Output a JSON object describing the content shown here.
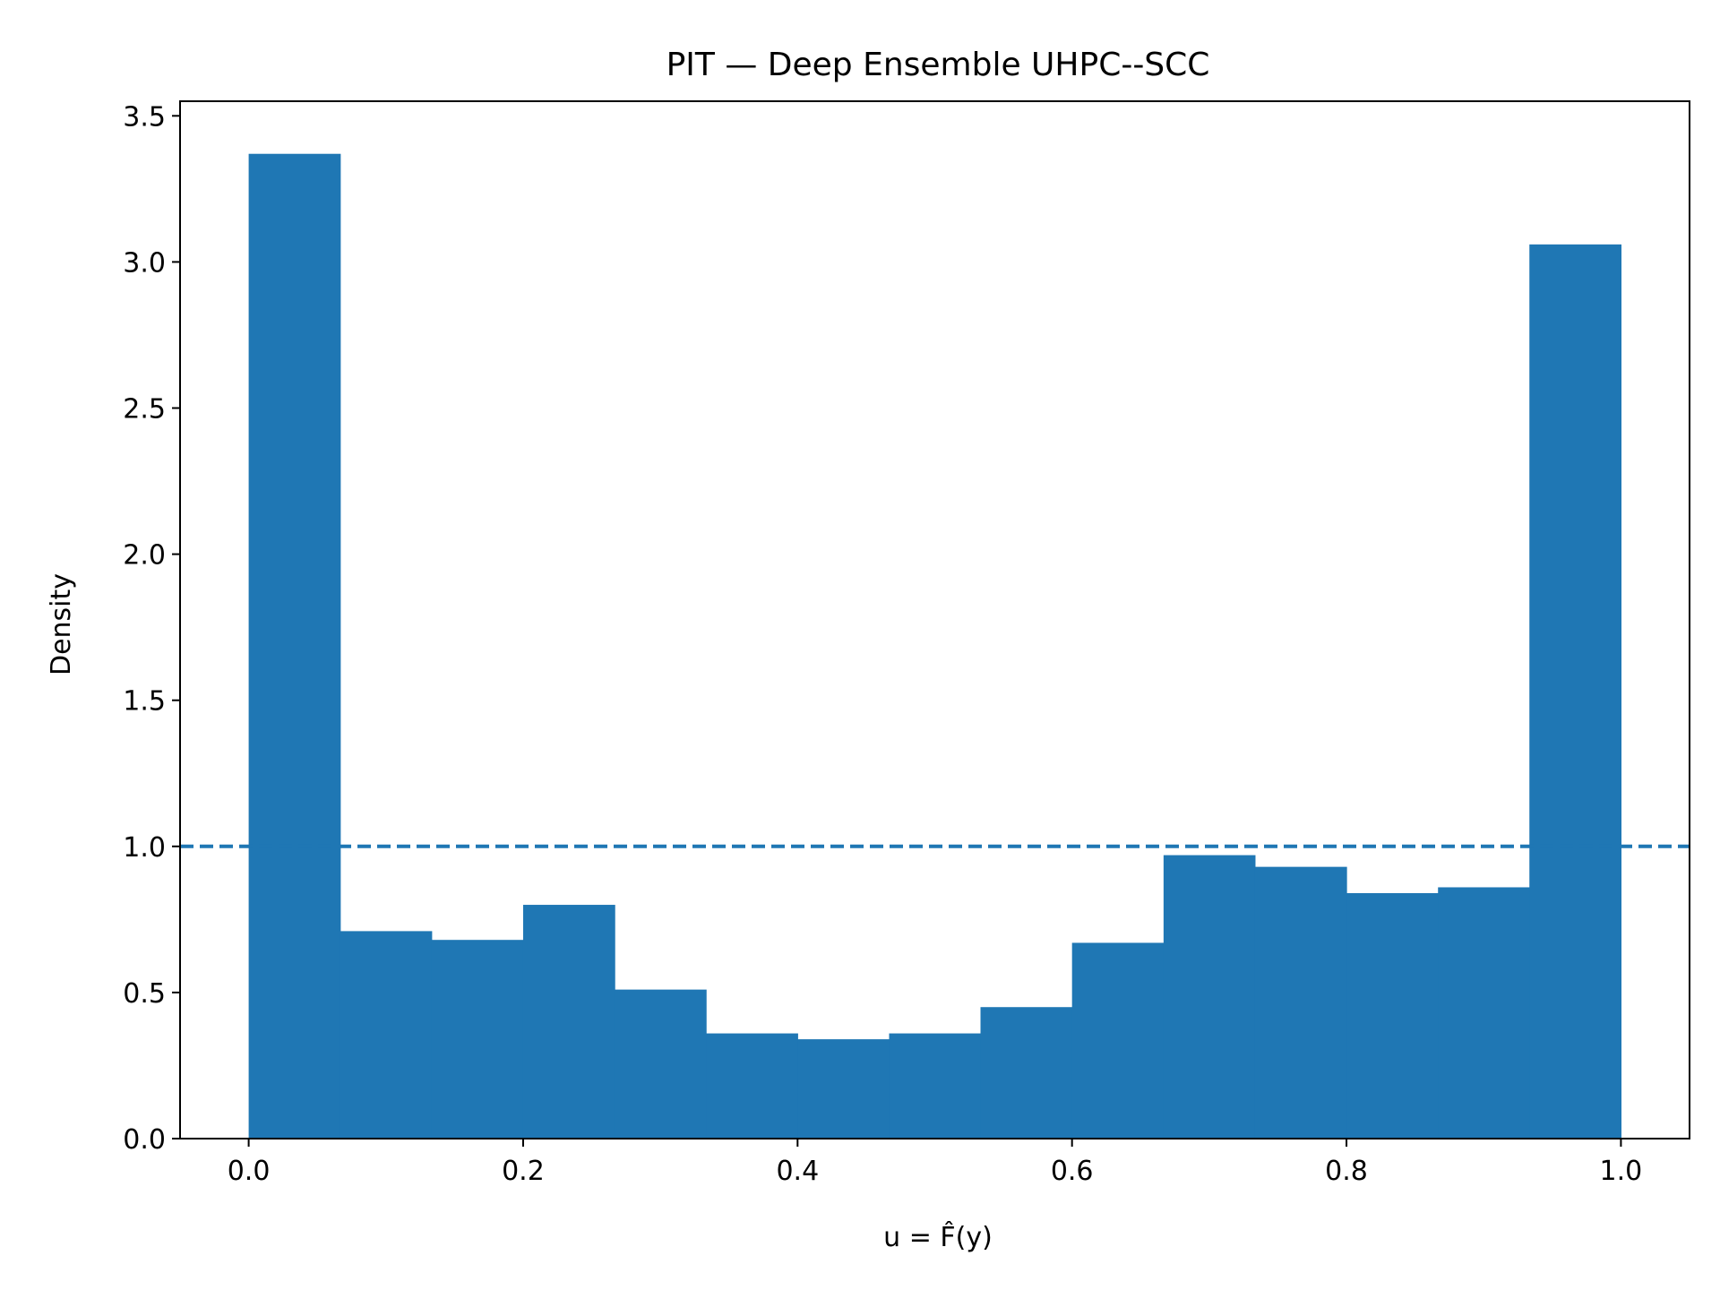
{
  "chart_data": {
    "type": "bar",
    "title": "PIT — Deep Ensemble UHPC--SCC",
    "xlabel": "u = F̂(y)",
    "ylabel": "Density",
    "xlim": [
      -0.05,
      1.05
    ],
    "ylim": [
      0,
      3.55
    ],
    "bin_edges": [
      0.0,
      0.0667,
      0.1333,
      0.2,
      0.2667,
      0.3333,
      0.4,
      0.4667,
      0.5333,
      0.6,
      0.6667,
      0.7333,
      0.8,
      0.8667,
      0.9333,
      1.0
    ],
    "values": [
      3.37,
      0.71,
      0.68,
      0.8,
      0.51,
      0.36,
      0.34,
      0.36,
      0.45,
      0.67,
      0.97,
      0.93,
      0.84,
      0.86,
      3.06
    ],
    "reference_line": {
      "y": 1.0,
      "style": "dashed"
    },
    "x_ticks": [
      {
        "value": 0.0,
        "label": "0.0"
      },
      {
        "value": 0.2,
        "label": "0.2"
      },
      {
        "value": 0.4,
        "label": "0.4"
      },
      {
        "value": 0.6,
        "label": "0.6"
      },
      {
        "value": 0.8,
        "label": "0.8"
      },
      {
        "value": 1.0,
        "label": "1.0"
      }
    ],
    "y_ticks": [
      {
        "value": 0.0,
        "label": "0.0"
      },
      {
        "value": 0.5,
        "label": "0.5"
      },
      {
        "value": 1.0,
        "label": "1.0"
      },
      {
        "value": 1.5,
        "label": "1.5"
      },
      {
        "value": 2.0,
        "label": "2.0"
      },
      {
        "value": 2.5,
        "label": "2.5"
      },
      {
        "value": 3.0,
        "label": "3.0"
      },
      {
        "value": 3.5,
        "label": "3.5"
      }
    ],
    "grid": false,
    "bar_color": "#1f77b4",
    "line_color": "#1f77b4"
  }
}
